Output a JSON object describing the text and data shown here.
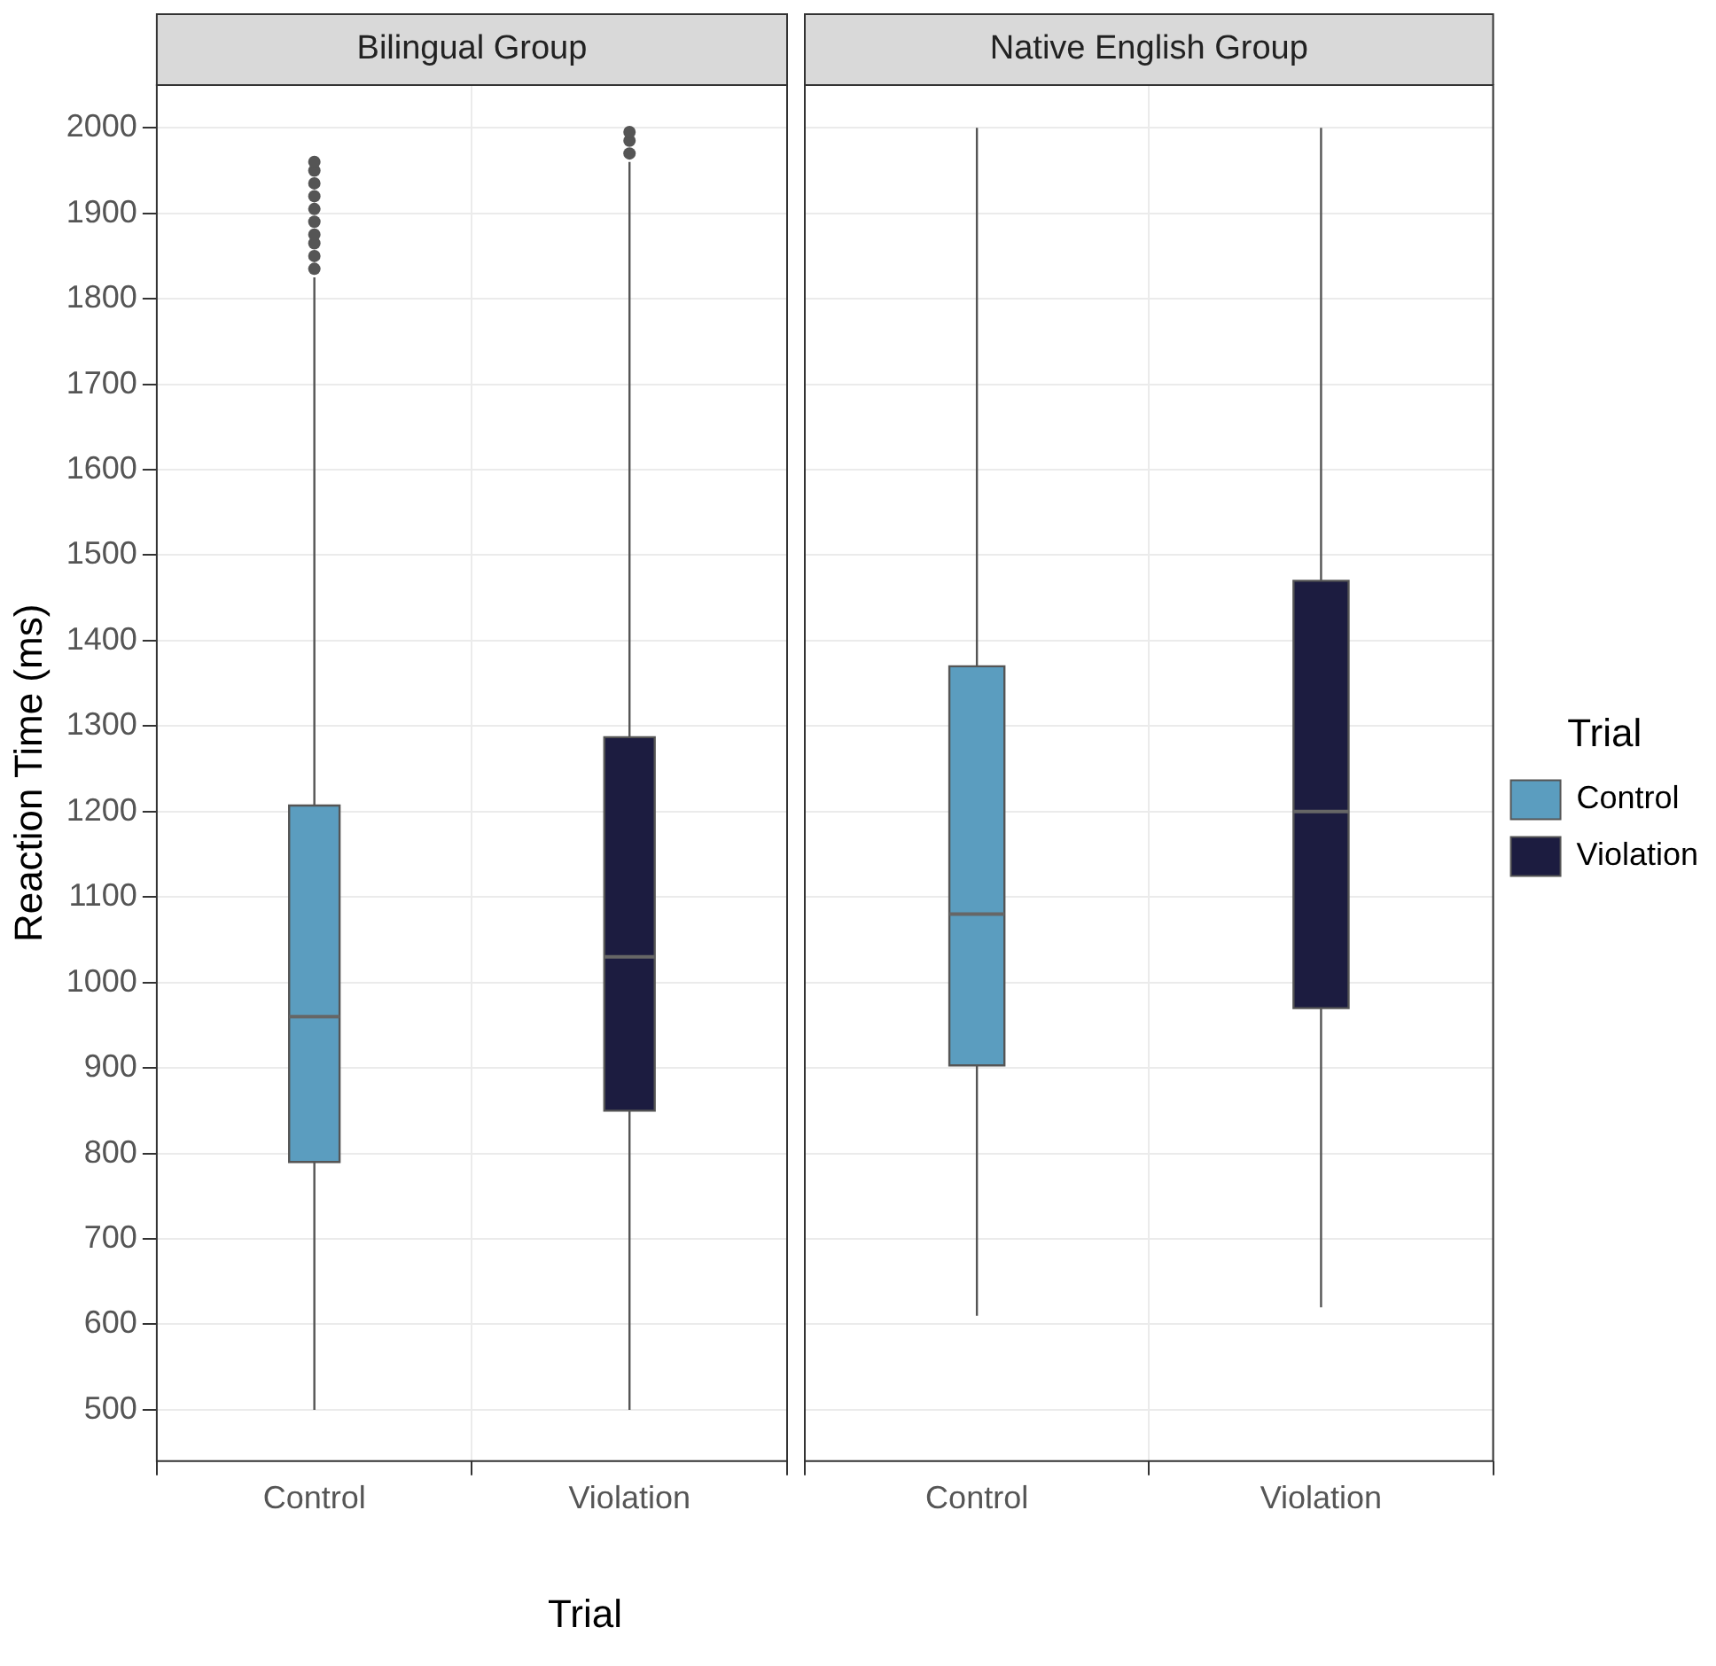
{
  "chart_data": [
    {
      "type": "box",
      "title": "Bilingual Group",
      "xlabel": "Trial",
      "ylabel": "Reaction Time (ms)",
      "categories": [
        "Control",
        "Violation"
      ],
      "legend": false,
      "grid": true,
      "ylim": [
        440,
        2050
      ],
      "yticks": [
        500,
        600,
        700,
        800,
        900,
        1000,
        1100,
        1200,
        1300,
        1400,
        1500,
        1600,
        1700,
        1800,
        1900,
        2000
      ],
      "series": [
        {
          "color": "#5b9dbf",
          "boxes": [
            {
              "low": 500,
              "q1": 790,
              "median": 960,
              "q3": 1207,
              "high": 1825,
              "outliers": [
                1835,
                1850,
                1865,
                1875,
                1890,
                1905,
                1920,
                1935,
                1950,
                1960
              ]
            },
            null
          ]
        },
        {
          "color": "#1c1c40",
          "boxes": [
            null,
            {
              "low": 500,
              "q1": 850,
              "median": 1030,
              "q3": 1287,
              "high": 1960,
              "outliers": [
                1970,
                1985,
                1995
              ]
            }
          ]
        }
      ]
    },
    {
      "type": "box",
      "title": "Native English Group",
      "categories": [
        "Control",
        "Violation"
      ],
      "legend": "right",
      "legend_title": "Trial",
      "grid": true,
      "tick_labels": "x",
      "ylim": [
        440,
        2050
      ],
      "yticks": [
        500,
        600,
        700,
        800,
        900,
        1000,
        1100,
        1200,
        1300,
        1400,
        1500,
        1600,
        1700,
        1800,
        1900,
        2000
      ],
      "series": [
        {
          "name": "Control",
          "color": "#5b9dbf",
          "boxes": [
            {
              "low": 610,
              "q1": 903,
              "median": 1080,
              "q3": 1370,
              "high": 2000
            },
            null
          ]
        },
        {
          "name": "Violation",
          "color": "#1c1c40",
          "boxes": [
            null,
            {
              "low": 620,
              "q1": 970,
              "median": 1200,
              "q3": 1470,
              "high": 2000
            }
          ]
        }
      ]
    }
  ]
}
